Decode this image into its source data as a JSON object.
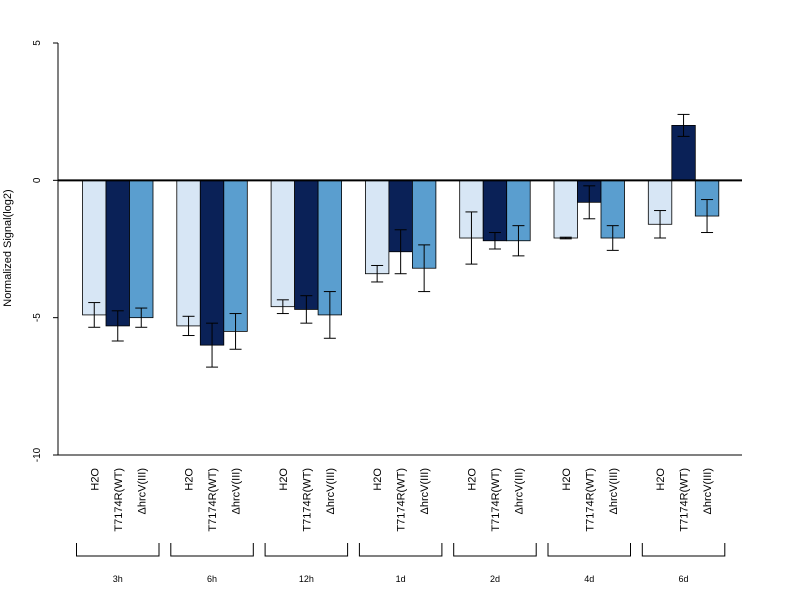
{
  "chart_data": {
    "type": "bar",
    "title": "",
    "xlabel": "",
    "ylabel": "Normalized Signal(log2)",
    "ylim": [
      -10,
      5
    ],
    "yticks": [
      5,
      0,
      -5,
      -10
    ],
    "grid": false,
    "legend": "none",
    "conditions": [
      "H2O",
      "T7174R(WT)",
      "ΔhrcV(III)"
    ],
    "colors": [
      "#d7e6f5",
      "#0a2157",
      "#5a9ecf"
    ],
    "groups": [
      {
        "label": "3h",
        "values": [
          -4.9,
          -5.3,
          -5.0
        ],
        "errors": [
          0.45,
          0.55,
          0.35
        ]
      },
      {
        "label": "6h",
        "values": [
          -5.3,
          -6.0,
          -5.5
        ],
        "errors": [
          0.35,
          0.8,
          0.65
        ]
      },
      {
        "label": "12h",
        "values": [
          -4.6,
          -4.7,
          -4.9
        ],
        "errors": [
          0.25,
          0.5,
          0.85
        ]
      },
      {
        "label": "1d",
        "values": [
          -3.4,
          -2.6,
          -3.2
        ],
        "errors": [
          0.3,
          0.8,
          0.85
        ]
      },
      {
        "label": "2d",
        "values": [
          -2.1,
          -2.2,
          -2.2
        ],
        "errors": [
          0.95,
          0.3,
          0.55
        ]
      },
      {
        "label": "4d",
        "values": [
          -2.1,
          -0.8,
          -2.1
        ],
        "errors": [
          0.03,
          0.6,
          0.45
        ]
      },
      {
        "label": "6d",
        "values": [
          -1.6,
          2.0,
          -1.3
        ],
        "errors": [
          0.5,
          0.4,
          0.6
        ]
      }
    ]
  }
}
